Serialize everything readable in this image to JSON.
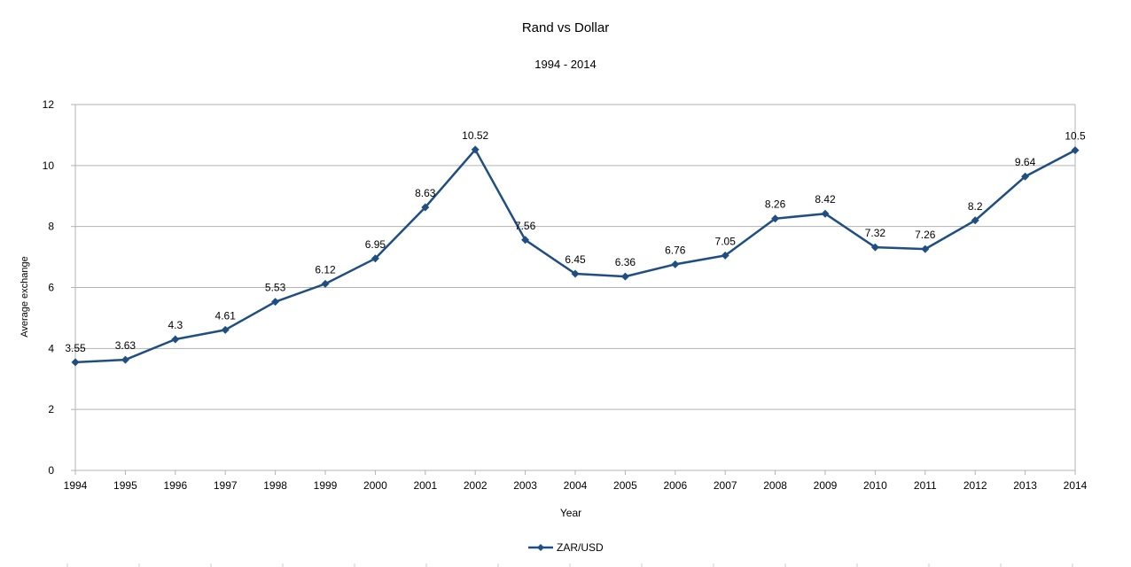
{
  "chart_data": {
    "type": "line",
    "title": "Rand vs Dollar",
    "subtitle": "1994 - 2014",
    "xlabel": "Year",
    "ylabel": "Average exchange",
    "x": [
      "1994",
      "1995",
      "1996",
      "1997",
      "1998",
      "1999",
      "2000",
      "2001",
      "2002",
      "2003",
      "2004",
      "2005",
      "2006",
      "2007",
      "2008",
      "2009",
      "2010",
      "2011",
      "2012",
      "2013",
      "2014"
    ],
    "series": [
      {
        "name": "ZAR/USD",
        "values": [
          3.55,
          3.63,
          4.3,
          4.61,
          5.53,
          6.12,
          6.95,
          8.63,
          10.52,
          7.56,
          6.45,
          6.36,
          6.76,
          7.05,
          8.26,
          8.42,
          7.32,
          7.26,
          8.2,
          9.64,
          10.5
        ],
        "labels": [
          "3.55",
          "3.63",
          "4.3",
          "4.61",
          "5.53",
          "6.12",
          "6.95",
          "8.63",
          "10.52",
          "7.56",
          "6.45",
          "6.36",
          "6.76",
          "7.05",
          "8.26",
          "8.42",
          "7.32",
          "7.26",
          "8.2",
          "9.64",
          "10.5"
        ],
        "color": "#1f4e82"
      }
    ],
    "ylim": [
      0,
      12
    ],
    "yticks": [
      "0",
      "2",
      "4",
      "6",
      "8",
      "10",
      "12"
    ],
    "grid": true,
    "legend_position": "bottom"
  }
}
